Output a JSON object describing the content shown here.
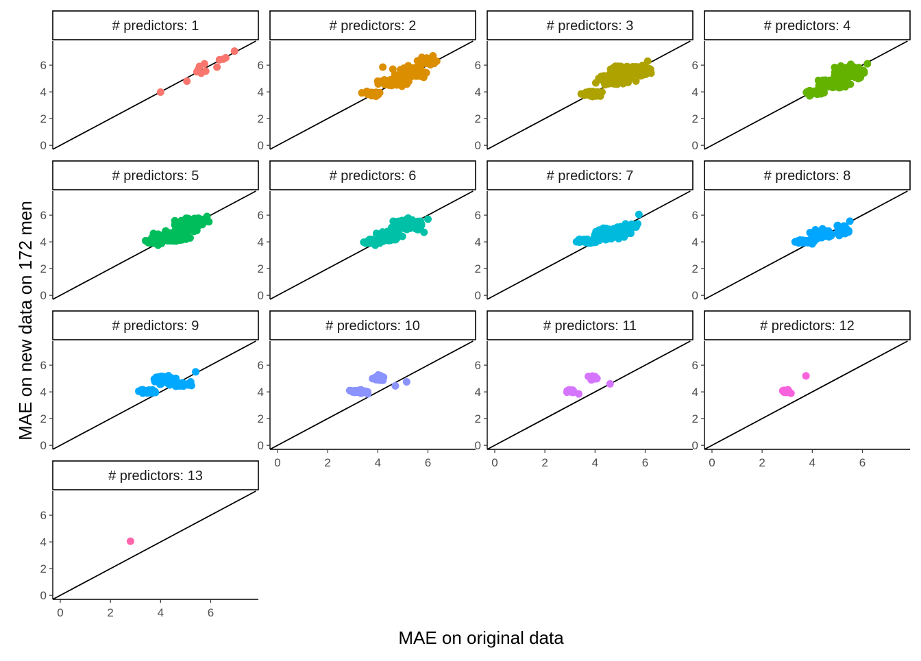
{
  "chart_data": {
    "type": "scatter",
    "xlabel": "MAE on original data",
    "ylabel": "MAE on new data on 172 men",
    "strip_prefix": "# predictors: ",
    "xlim": [
      -0.3,
      7.9
    ],
    "ylim": [
      -0.3,
      7.8
    ],
    "x_ticks": [
      0,
      2,
      4,
      6
    ],
    "y_ticks": [
      0,
      2,
      4,
      6
    ],
    "reference_line": {
      "slope": 1,
      "intercept": 0
    },
    "grid": false,
    "facets": [
      {
        "label": "1",
        "color": "#F8766D",
        "clusters": [],
        "points": [
          [
            4.0,
            3.98
          ],
          [
            5.05,
            4.8
          ],
          [
            5.5,
            5.65
          ],
          [
            5.45,
            5.5
          ],
          [
            5.55,
            5.9
          ],
          [
            5.62,
            5.4
          ],
          [
            5.75,
            6.1
          ],
          [
            5.8,
            5.55
          ],
          [
            6.25,
            5.85
          ],
          [
            6.35,
            6.4
          ],
          [
            6.6,
            6.55
          ],
          [
            6.5,
            6.45
          ],
          [
            6.95,
            7.05
          ]
        ]
      },
      {
        "label": "2",
        "color": "#DB8E00",
        "clusters": [
          [
            3.8,
            3.85,
            0.3,
            0.15,
            40
          ],
          [
            4.6,
            4.7,
            0.5,
            0.2,
            60
          ],
          [
            5.4,
            5.45,
            0.5,
            0.3,
            80
          ],
          [
            6.0,
            6.3,
            0.3,
            0.2,
            50
          ],
          [
            5.3,
            5.7,
            0.3,
            0.2,
            30
          ]
        ],
        "points": [
          [
            3.9,
            3.7
          ],
          [
            4.2,
            5.85
          ],
          [
            4.6,
            5.7
          ],
          [
            4.55,
            4.6
          ],
          [
            6.2,
            6.7
          ]
        ]
      },
      {
        "label": "3",
        "color": "#AEA200",
        "clusters": [
          [
            3.8,
            3.85,
            0.35,
            0.15,
            50
          ],
          [
            4.8,
            4.9,
            0.6,
            0.35,
            90
          ],
          [
            5.6,
            5.6,
            0.5,
            0.35,
            90
          ],
          [
            4.9,
            5.8,
            0.2,
            0.15,
            30
          ]
        ],
        "points": [
          [
            3.9,
            3.65
          ],
          [
            6.1,
            6.3
          ]
        ]
      },
      {
        "label": "4",
        "color": "#64B200",
        "clusters": [
          [
            4.1,
            3.95,
            0.3,
            0.15,
            60
          ],
          [
            4.8,
            4.6,
            0.5,
            0.3,
            120
          ],
          [
            5.5,
            5.5,
            0.5,
            0.35,
            140
          ]
        ],
        "points": [
          [
            3.9,
            3.7
          ],
          [
            6.2,
            6.1
          ]
        ]
      },
      {
        "label": "5",
        "color": "#00BD5C",
        "clusters": [
          [
            3.8,
            4.05,
            0.3,
            0.15,
            60
          ],
          [
            4.4,
            4.35,
            0.5,
            0.3,
            140
          ],
          [
            5.0,
            5.2,
            0.4,
            0.35,
            140
          ],
          [
            5.4,
            5.5,
            0.35,
            0.3,
            60
          ]
        ],
        "points": [
          [
            3.9,
            3.75
          ],
          [
            5.85,
            5.9
          ]
        ]
      },
      {
        "label": "6",
        "color": "#00C1A7",
        "clusters": [
          [
            3.8,
            4.05,
            0.3,
            0.15,
            60
          ],
          [
            4.4,
            4.4,
            0.4,
            0.3,
            120
          ],
          [
            5.2,
            5.3,
            0.5,
            0.35,
            140
          ]
        ],
        "points": [
          [
            3.9,
            3.75
          ],
          [
            6.0,
            5.7
          ]
        ]
      },
      {
        "label": "7",
        "color": "#00BADE",
        "clusters": [
          [
            3.7,
            4.05,
            0.35,
            0.12,
            60
          ],
          [
            4.5,
            4.6,
            0.4,
            0.35,
            110
          ],
          [
            5.2,
            4.9,
            0.3,
            0.3,
            50
          ]
        ],
        "points": [
          [
            5.75,
            6.05
          ],
          [
            5.7,
            5.35
          ]
        ]
      },
      {
        "label": "8",
        "color": "#00A6FF",
        "clusters": [
          [
            3.7,
            4.05,
            0.35,
            0.12,
            60
          ],
          [
            4.3,
            4.6,
            0.35,
            0.3,
            100
          ],
          [
            5.2,
            4.9,
            0.2,
            0.3,
            40
          ]
        ],
        "points": [
          [
            4.0,
            3.85
          ],
          [
            5.5,
            5.55
          ]
        ]
      },
      {
        "label": "9",
        "color": "#00A9FF",
        "clusters": [
          [
            3.5,
            4.05,
            0.35,
            0.12,
            60
          ],
          [
            4.2,
            4.9,
            0.35,
            0.25,
            90
          ],
          [
            4.9,
            4.55,
            0.25,
            0.15,
            30
          ]
        ],
        "points": [
          [
            5.4,
            5.5
          ],
          [
            5.2,
            4.75
          ]
        ]
      },
      {
        "label": "10",
        "color": "#8B93FF",
        "clusters": [
          [
            3.2,
            4.05,
            0.3,
            0.12,
            40
          ],
          [
            4.05,
            5.0,
            0.2,
            0.18,
            40
          ]
        ],
        "points": [
          [
            3.6,
            3.85
          ],
          [
            4.7,
            4.45
          ],
          [
            5.15,
            4.75
          ]
        ]
      },
      {
        "label": "11",
        "color": "#D575FE",
        "clusters": [
          [
            3.0,
            4.05,
            0.15,
            0.1,
            30
          ],
          [
            3.95,
            5.05,
            0.15,
            0.12,
            25
          ]
        ],
        "points": [
          [
            3.35,
            3.85
          ],
          [
            4.6,
            4.6
          ]
        ]
      },
      {
        "label": "12",
        "color": "#F962DD",
        "clusters": [
          [
            2.95,
            4.05,
            0.12,
            0.08,
            15
          ]
        ],
        "points": [
          [
            3.75,
            5.2
          ],
          [
            3.15,
            3.9
          ]
        ]
      },
      {
        "label": "13",
        "color": "#FF65AC",
        "clusters": [],
        "points": [
          [
            2.8,
            4.05
          ]
        ]
      }
    ]
  }
}
